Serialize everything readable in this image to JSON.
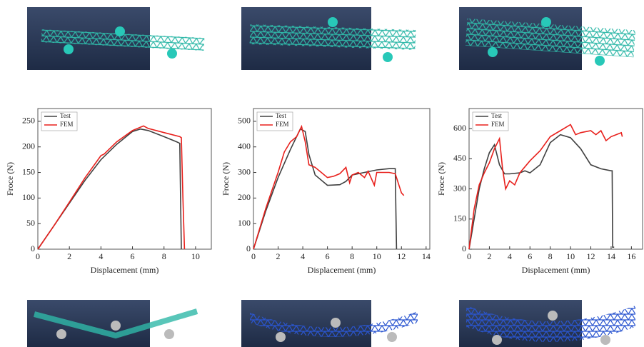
{
  "chart_data": [
    {
      "type": "line",
      "xlabel": "Displacement (mm)",
      "ylabel": "Froce (N)",
      "xlim": [
        0,
        11
      ],
      "xticks": [
        0,
        2,
        4,
        6,
        8,
        10
      ],
      "ylim": [
        0,
        275
      ],
      "yticks": [
        0,
        50,
        100,
        150,
        200,
        250
      ],
      "series": [
        {
          "name": "Test",
          "color": "#404040",
          "x": [
            0,
            1,
            2,
            3,
            4,
            5,
            6,
            6.5,
            7,
            8,
            8.8,
            9.0,
            9.05,
            9.1
          ],
          "values": [
            0,
            45,
            90,
            135,
            175,
            205,
            230,
            235,
            232,
            220,
            210,
            207,
            100,
            0
          ]
        },
        {
          "name": "FEM",
          "color": "#e8201c",
          "x": [
            0,
            1,
            2,
            3,
            4,
            4.2,
            5,
            6,
            6.7,
            7,
            8,
            9,
            9.1,
            9.2,
            9.3
          ],
          "values": [
            0,
            45,
            92,
            140,
            183,
            186,
            210,
            232,
            241,
            236,
            228,
            220,
            218,
            100,
            0
          ]
        }
      ]
    },
    {
      "type": "line",
      "xlabel": "Displacement (mm)",
      "ylabel": "Froce (N)",
      "xlim": [
        0,
        14.3
      ],
      "xticks": [
        0,
        2,
        4,
        6,
        8,
        10,
        12,
        14
      ],
      "ylim": [
        0,
        550
      ],
      "yticks": [
        0,
        100,
        200,
        300,
        400,
        500
      ],
      "series": [
        {
          "name": "Test",
          "color": "#404040",
          "x": [
            0,
            1,
            2,
            3,
            3.8,
            4.2,
            4.5,
            5,
            6,
            7,
            7.5,
            8,
            9,
            10,
            11,
            11.5,
            11.55,
            11.6
          ],
          "values": [
            0,
            150,
            280,
            390,
            470,
            460,
            370,
            290,
            250,
            252,
            265,
            290,
            300,
            310,
            315,
            315,
            150,
            0
          ]
        },
        {
          "name": "FEM",
          "color": "#e8201c",
          "x": [
            0,
            1,
            2,
            2.5,
            3,
            3.5,
            3.9,
            4.2,
            4.5,
            5,
            5.5,
            6,
            6.5,
            7,
            7.5,
            7.8,
            8,
            8.5,
            9,
            9.3,
            9.8,
            10,
            10.5,
            11,
            11.5,
            11.8,
            12,
            12.2
          ],
          "values": [
            0,
            160,
            300,
            380,
            420,
            440,
            480,
            420,
            330,
            320,
            300,
            280,
            285,
            295,
            320,
            260,
            290,
            300,
            280,
            305,
            250,
            300,
            300,
            300,
            295,
            250,
            220,
            210
          ]
        }
      ]
    },
    {
      "type": "line",
      "xlabel": "Displacement (mm)",
      "ylabel": "Froce (N)",
      "xlim": [
        0,
        17.1
      ],
      "xticks": [
        0,
        2,
        4,
        6,
        8,
        10,
        12,
        14,
        16
      ],
      "ylim": [
        0,
        700
      ],
      "yticks": [
        0,
        150,
        300,
        450,
        600
      ],
      "series": [
        {
          "name": "Test",
          "color": "#404040",
          "x": [
            0,
            0.5,
            1,
            1.5,
            2,
            2.5,
            3,
            3.5,
            4,
            5,
            5.5,
            6,
            7,
            8,
            9,
            10,
            11,
            12,
            13,
            14,
            14.1,
            14.15,
            14.3
          ],
          "values": [
            0,
            150,
            300,
            400,
            480,
            520,
            420,
            375,
            375,
            380,
            390,
            380,
            420,
            530,
            570,
            555,
            500,
            420,
            400,
            390,
            390,
            10,
            10
          ]
        },
        {
          "name": "FEM",
          "color": "#e8201c",
          "x": [
            0,
            0.5,
            1,
            1.5,
            2,
            2.5,
            3,
            3.3,
            3.6,
            4,
            4.5,
            5,
            6,
            7,
            8,
            9,
            10,
            10.5,
            11,
            12,
            12.5,
            13,
            13.5,
            14,
            14.5,
            15,
            15.1
          ],
          "values": [
            0,
            200,
            320,
            380,
            430,
            500,
            550,
            400,
            300,
            340,
            320,
            380,
            440,
            490,
            560,
            590,
            620,
            570,
            580,
            590,
            570,
            590,
            540,
            560,
            570,
            580,
            560
          ]
        }
      ]
    }
  ]
}
